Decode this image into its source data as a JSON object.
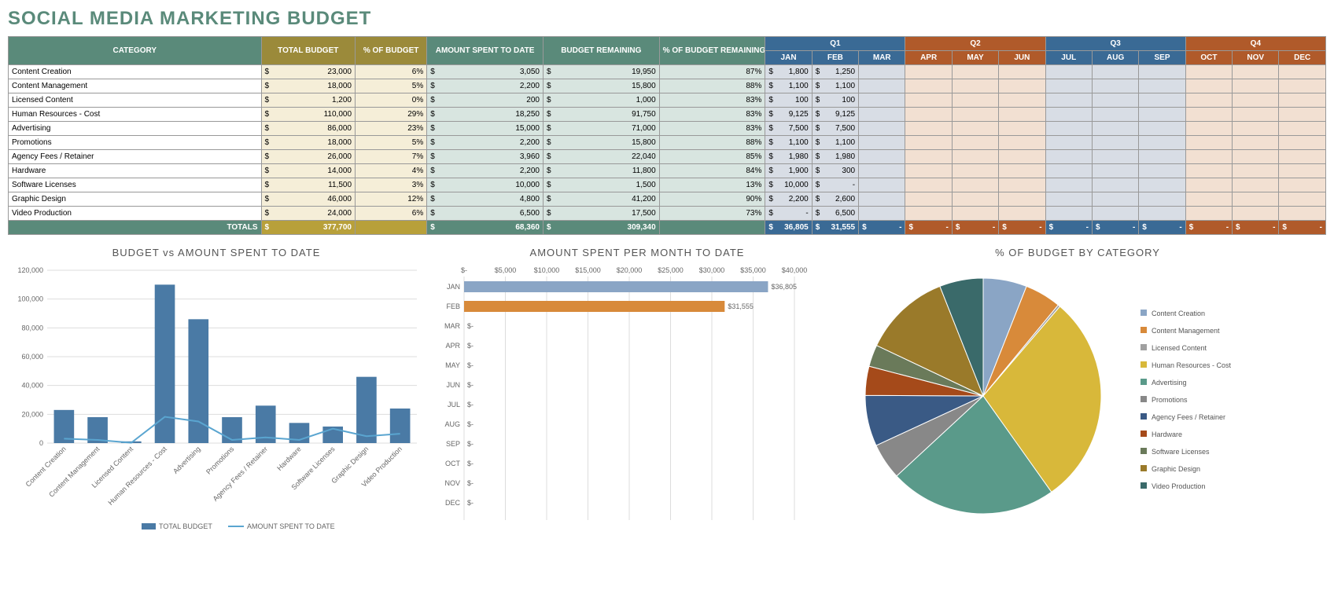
{
  "title": "SOCIAL MEDIA MARKETING BUDGET",
  "headers": {
    "category": "CATEGORY",
    "total_budget": "TOTAL BUDGET",
    "pct_budget": "% OF BUDGET",
    "amt_spent": "AMOUNT SPENT TO DATE",
    "budget_rem": "BUDGET REMAINING",
    "pct_rem": "% OF BUDGET REMAINING",
    "quarters": [
      "Q1",
      "Q2",
      "Q3",
      "Q4"
    ],
    "months": [
      "JAN",
      "FEB",
      "MAR",
      "APR",
      "MAY",
      "JUN",
      "JUL",
      "AUG",
      "SEP",
      "OCT",
      "NOV",
      "DEC"
    ]
  },
  "rows": [
    {
      "cat": "Content Creation",
      "budget": 23000,
      "pct": "6%",
      "spent": 3050,
      "rem": 19950,
      "pctrem": "87%",
      "jan": 1800,
      "feb": 1250
    },
    {
      "cat": "Content Management",
      "budget": 18000,
      "pct": "5%",
      "spent": 2200,
      "rem": 15800,
      "pctrem": "88%",
      "jan": 1100,
      "feb": 1100
    },
    {
      "cat": "Licensed Content",
      "budget": 1200,
      "pct": "0%",
      "spent": 200,
      "rem": 1000,
      "pctrem": "83%",
      "jan": 100,
      "feb": 100
    },
    {
      "cat": "Human Resources - Cost",
      "budget": 110000,
      "pct": "29%",
      "spent": 18250,
      "rem": 91750,
      "pctrem": "83%",
      "jan": 9125,
      "feb": 9125
    },
    {
      "cat": "Advertising",
      "budget": 86000,
      "pct": "23%",
      "spent": 15000,
      "rem": 71000,
      "pctrem": "83%",
      "jan": 7500,
      "feb": 7500
    },
    {
      "cat": "Promotions",
      "budget": 18000,
      "pct": "5%",
      "spent": 2200,
      "rem": 15800,
      "pctrem": "88%",
      "jan": 1100,
      "feb": 1100
    },
    {
      "cat": "Agency Fees / Retainer",
      "budget": 26000,
      "pct": "7%",
      "spent": 3960,
      "rem": 22040,
      "pctrem": "85%",
      "jan": 1980,
      "feb": 1980
    },
    {
      "cat": "Hardware",
      "budget": 14000,
      "pct": "4%",
      "spent": 2200,
      "rem": 11800,
      "pctrem": "84%",
      "jan": 1900,
      "feb": 300
    },
    {
      "cat": "Software Licenses",
      "budget": 11500,
      "pct": "3%",
      "spent": 10000,
      "rem": 1500,
      "pctrem": "13%",
      "jan": 10000,
      "feb": 0
    },
    {
      "cat": "Graphic Design",
      "budget": 46000,
      "pct": "12%",
      "spent": 4800,
      "rem": 41200,
      "pctrem": "90%",
      "jan": 2200,
      "feb": 2600
    },
    {
      "cat": "Video Production",
      "budget": 24000,
      "pct": "6%",
      "spent": 6500,
      "rem": 17500,
      "pctrem": "73%",
      "jan": 0,
      "feb": 6500
    }
  ],
  "totals": {
    "label": "TOTALS",
    "budget": "377,700",
    "spent": "68,360",
    "rem": "309,340",
    "jan": "36,805",
    "feb": "31,555"
  },
  "chart1": {
    "title": "BUDGET vs AMOUNT SPENT TO DATE",
    "ymax": 120000,
    "yticks": [
      0,
      20000,
      40000,
      60000,
      80000,
      100000,
      120000
    ],
    "legend": [
      "TOTAL BUDGET",
      "AMOUNT SPENT TO DATE"
    ],
    "bar_color": "#4a7aa5",
    "line_color": "#5aa5d0"
  },
  "chart2": {
    "title": "AMOUNT SPENT PER MONTH TO DATE",
    "xmax": 40000,
    "xticks": [
      "$-",
      "$5,000",
      "$10,000",
      "$15,000",
      "$20,000",
      "$25,000",
      "$30,000",
      "$35,000",
      "$40,000"
    ],
    "bars": [
      {
        "m": "JAN",
        "v": 36805,
        "lbl": "$36,805",
        "c": "#8aa5c5"
      },
      {
        "m": "FEB",
        "v": 31555,
        "lbl": "$31,555",
        "c": "#d88a3a"
      }
    ],
    "empty": [
      "MAR",
      "APR",
      "MAY",
      "JUN",
      "JUL",
      "AUG",
      "SEP",
      "OCT",
      "NOV",
      "DEC"
    ],
    "empty_lbl": "$-"
  },
  "chart3": {
    "title": "% OF BUDGET BY CATEGORY",
    "slices": [
      {
        "l": "Content Creation",
        "v": 6,
        "c": "#8aa5c5"
      },
      {
        "l": "Content Management",
        "v": 5,
        "c": "#d88a3a"
      },
      {
        "l": "Licensed Content",
        "v": 0.3,
        "c": "#a0a0a0"
      },
      {
        "l": "Human Resources - Cost",
        "v": 29,
        "c": "#d8b83a"
      },
      {
        "l": "Advertising",
        "v": 23,
        "c": "#5a9a8a"
      },
      {
        "l": "Promotions",
        "v": 5,
        "c": "#888888"
      },
      {
        "l": "Agency Fees / Retainer",
        "v": 7,
        "c": "#3a5a85"
      },
      {
        "l": "Hardware",
        "v": 4,
        "c": "#a54a1a"
      },
      {
        "l": "Software Licenses",
        "v": 3,
        "c": "#6a7a5a"
      },
      {
        "l": "Graphic Design",
        "v": 12,
        "c": "#9a7a2a"
      },
      {
        "l": "Video Production",
        "v": 6,
        "c": "#3a6a6a"
      }
    ]
  }
}
